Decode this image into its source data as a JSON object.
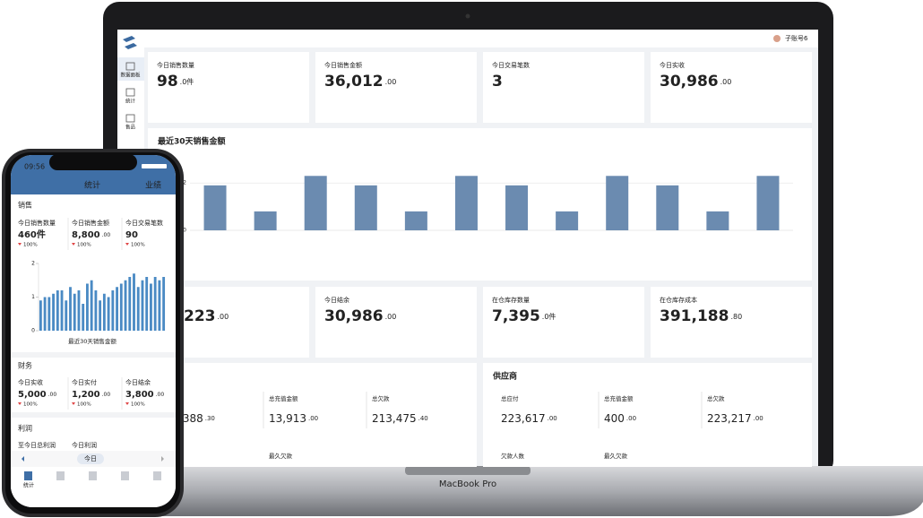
{
  "laptop": {
    "user": "子账号6",
    "sidebar": [
      "数据面板",
      "统计",
      "售品"
    ],
    "cards": [
      {
        "label": "今日销售数量",
        "value": "98",
        "decimals": ".0件"
      },
      {
        "label": "今日销售金额",
        "value": "36,012",
        "decimals": ".00"
      },
      {
        "label": "今日交易笔数",
        "value": "3"
      },
      {
        "label": "今日实收",
        "value": "30,986",
        "decimals": ".00"
      }
    ],
    "chart": {
      "type": "bar",
      "title": "最近30天销售金额",
      "values": [
        1.9,
        0.8,
        2.3,
        1.9,
        0.8,
        2.3,
        1.9,
        0.8,
        2.3,
        1.9,
        0.8,
        2.3
      ],
      "color": "#6b8bb0",
      "ylim": [
        0,
        2.5
      ],
      "yticks": [
        0,
        2
      ],
      "grid": true
    },
    "stock_cards": [
      {
        "value": "223",
        "decimals": ".00"
      },
      {
        "label": "今日结余",
        "value": "30,986",
        "decimals": ".00"
      },
      {
        "label": "在仓库存数量",
        "value": "7,395",
        "decimals": ".0件"
      },
      {
        "label": "在仓库存成本",
        "value": "391,188",
        "decimals": ".80"
      }
    ],
    "sections": [
      {
        "items": [
          {
            "value": ",388",
            "decimals": ".30"
          },
          {
            "label": "总充值金额",
            "value": "13,913",
            "decimals": ".00"
          },
          {
            "label": "总欠款",
            "value": "213,475",
            "decimals": ".40"
          }
        ],
        "footer": [
          "最久欠款"
        ]
      },
      {
        "title": "供应商",
        "items": [
          {
            "label": "总应付",
            "value": "223,617",
            "decimals": ".00"
          },
          {
            "label": "总充值金额",
            "value": "400",
            "decimals": ".00"
          },
          {
            "label": "总欠款",
            "value": "223,217",
            "decimals": ".00"
          }
        ],
        "footer": [
          "欠款人数",
          "最久欠款"
        ]
      }
    ],
    "model": "MacBook Pro"
  },
  "phone": {
    "time": "09:56",
    "header": "统计",
    "header_right": "业绩",
    "sales": {
      "title": "销售",
      "items": [
        {
          "label": "今日销售数量",
          "value": "460件",
          "change": "100%"
        },
        {
          "label": "今日销售金额",
          "value": "8,800",
          "decimals": ".00",
          "change": "100%"
        },
        {
          "label": "今日交易笔数",
          "value": "90",
          "change": "100%"
        }
      ]
    },
    "chart": {
      "type": "bar",
      "xlabel": "最近30天销售金额",
      "values": [
        0.9,
        1.0,
        1.0,
        1.1,
        1.2,
        1.2,
        0.9,
        1.3,
        1.1,
        1.2,
        0.8,
        1.4,
        1.5,
        1.2,
        0.9,
        1.1,
        1.0,
        1.2,
        1.3,
        1.4,
        1.5,
        1.6,
        1.7,
        1.3,
        1.5,
        1.6,
        1.4,
        1.6,
        1.5,
        1.6
      ],
      "color": "#4a8ac4",
      "ylim": [
        0,
        2
      ],
      "yticks": [
        0,
        1,
        2
      ]
    },
    "finance": {
      "title": "财务",
      "items": [
        {
          "label": "今日实收",
          "value": "5,000",
          "decimals": ".00",
          "change": "100%"
        },
        {
          "label": "今日实付",
          "value": "1,200",
          "decimals": ".00",
          "change": "100%"
        },
        {
          "label": "今日结余",
          "value": "3,800",
          "decimals": ".00",
          "change": "100%"
        }
      ]
    },
    "profit": {
      "title": "利润",
      "labels": [
        "至今日总利润",
        "今日利润"
      ]
    },
    "period": "今日",
    "tab": "统计"
  }
}
